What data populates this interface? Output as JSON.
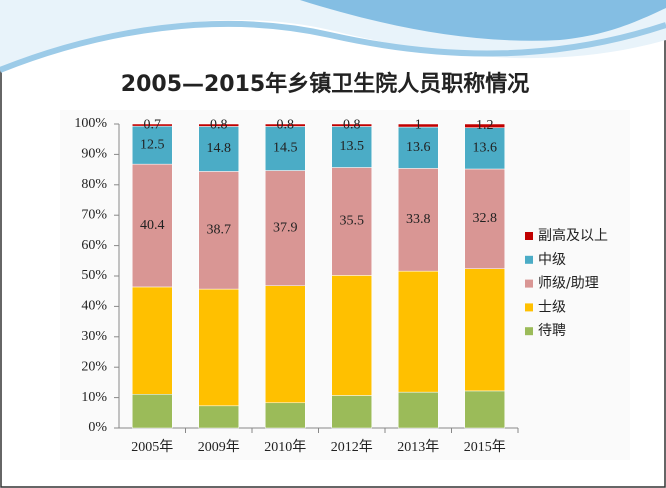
{
  "chart_data": {
    "type": "stacked_bar_percent",
    "title": "2005—2015年乡镇卫生院人员职称情况",
    "categories": [
      "2005年",
      "2009年",
      "2010年",
      "2012年",
      "2013年",
      "2015年"
    ],
    "series": [
      {
        "name": "待聘",
        "color": "#9bbb59",
        "values": [
          11.1,
          7.3,
          8.3,
          10.7,
          11.8,
          12.2
        ],
        "show_labels": false
      },
      {
        "name": "士级",
        "color": "#ffc000",
        "values": [
          35.3,
          38.4,
          38.5,
          39.5,
          39.8,
          40.2
        ],
        "show_labels": false
      },
      {
        "name": "师级/助理",
        "color": "#d99694",
        "values": [
          40.4,
          38.7,
          37.9,
          35.5,
          33.8,
          32.8
        ],
        "show_labels": true
      },
      {
        "name": "中级",
        "color": "#4bacc6",
        "values": [
          12.5,
          14.8,
          14.5,
          13.5,
          13.6,
          13.6
        ],
        "show_labels": true
      },
      {
        "name": "副高及以上",
        "color": "#c00000",
        "values": [
          0.7,
          0.8,
          0.8,
          0.8,
          1,
          1.2
        ],
        "show_labels": true
      }
    ],
    "ylim": [
      0,
      100
    ],
    "yticks": [
      {
        "value": 0,
        "label": "0%"
      },
      {
        "value": 10,
        "label": "10%"
      },
      {
        "value": 20,
        "label": "20%"
      },
      {
        "value": 30,
        "label": "30%"
      },
      {
        "value": 40,
        "label": "40%"
      },
      {
        "value": 50,
        "label": "50%"
      },
      {
        "value": 60,
        "label": "60%"
      },
      {
        "value": 70,
        "label": "70%"
      },
      {
        "value": 80,
        "label": "80%"
      },
      {
        "value": 90,
        "label": "90%"
      },
      {
        "value": 100,
        "label": "100%"
      }
    ],
    "legend": "right"
  }
}
